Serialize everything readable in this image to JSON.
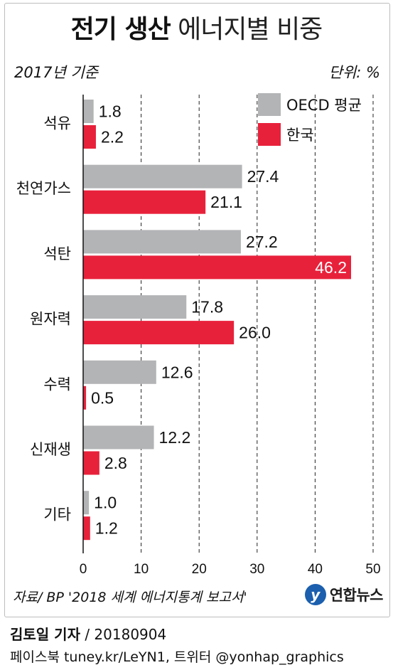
{
  "header": {
    "title_bold": "전기 생산",
    "title_light": "에너지별 비중",
    "subtitle": "2017년 기준",
    "unit": "단위: %"
  },
  "colors": {
    "oecd": "#b3b4b6",
    "korea": "#e8213b",
    "grid": "#222222",
    "axis": "#111111"
  },
  "chart_data": {
    "type": "bar",
    "orientation": "horizontal",
    "title": "전기 생산 에너지별 비중",
    "subtitle": "2017년 기준",
    "unit": "단위: %",
    "categories": [
      "석유",
      "천연가스",
      "석탄",
      "원자력",
      "수력",
      "신재생",
      "기타"
    ],
    "series": [
      {
        "name": "OECD 평균",
        "values": [
          1.8,
          27.4,
          27.2,
          17.8,
          12.6,
          12.2,
          1.0
        ],
        "labels": [
          "1.8",
          "27.4",
          "27.2",
          "17.8",
          "12.6",
          "12.2",
          "1.0"
        ]
      },
      {
        "name": "한국",
        "values": [
          2.2,
          21.1,
          46.2,
          26.0,
          0.5,
          2.8,
          1.2
        ],
        "labels": [
          "2.2",
          "21.1",
          "46.2",
          "26.0",
          "0.5",
          "2.8",
          "1.2"
        ]
      }
    ],
    "xlim": [
      0,
      50
    ],
    "xticks": [
      0,
      10,
      20,
      30,
      40,
      50
    ],
    "grid": "vertical dashed",
    "legend": "top-right"
  },
  "footer": {
    "source": "자료/ BP '2018 세계 에너지통계 보고서'",
    "logo_text": "연합뉴스",
    "logo_mark": "y",
    "author": "김토일 기자",
    "date": " / 20180904",
    "social": "페이스북 tuney.kr/LeYN1, 트위터 @yonhap_graphics"
  }
}
